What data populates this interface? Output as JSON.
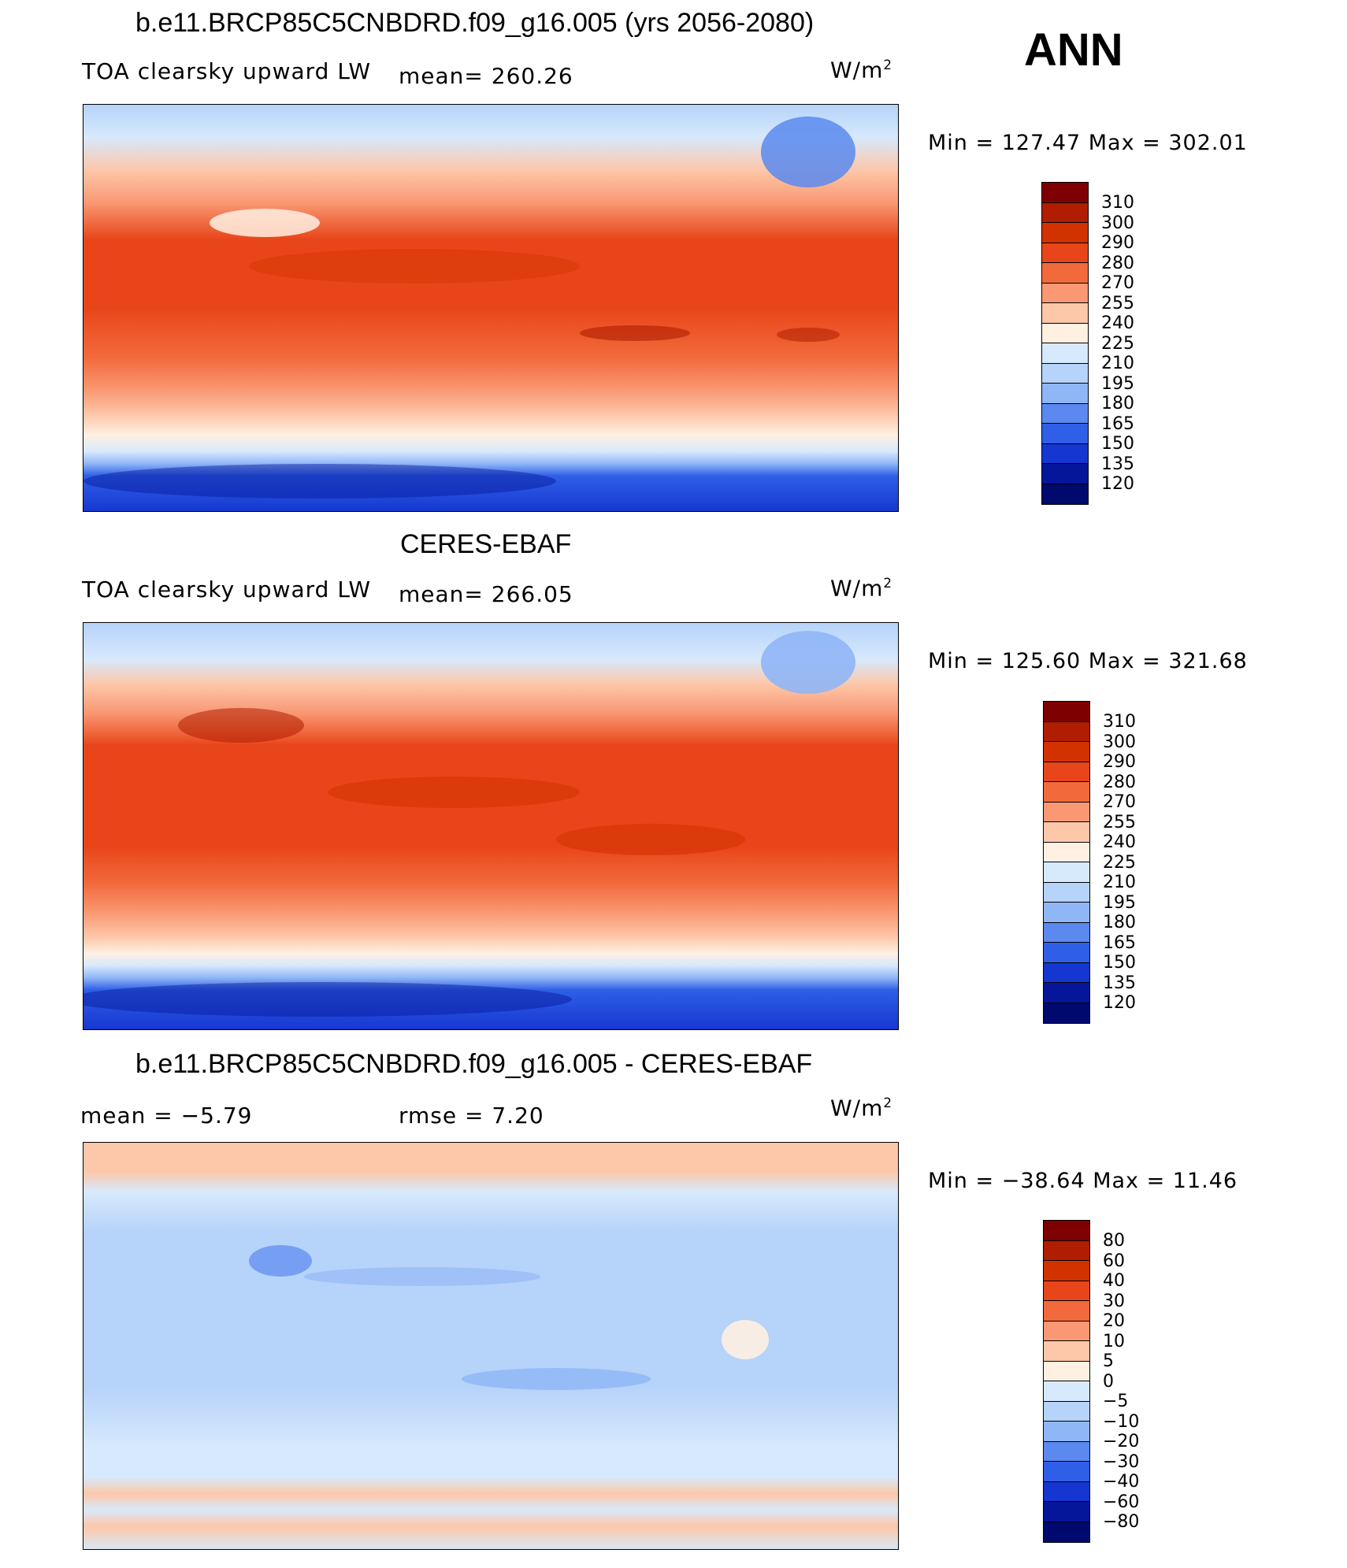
{
  "header": {
    "season": "ANN"
  },
  "panels": [
    {
      "title": "b.e11.BRCP85C5CNBDRD.f09_g16.005 (yrs 2056-2080)",
      "left_label": "TOA clearsky upward LW",
      "center_label": "mean=  260.26",
      "units": "W/m",
      "units_sup": "2",
      "minmax": "Min  =  127.47  Max  =  302.01",
      "map_name": "model-map",
      "colorbar_labels": [
        "310",
        "300",
        "290",
        "280",
        "270",
        "255",
        "240",
        "225",
        "210",
        "195",
        "180",
        "165",
        "150",
        "135",
        "120"
      ]
    },
    {
      "title": "CERES-EBAF",
      "left_label": "TOA clearsky upward LW",
      "center_label": "mean=  266.05",
      "units": "W/m",
      "units_sup": "2",
      "minmax": "Min  =  125.60  Max  =  321.68",
      "map_name": "obs-map",
      "colorbar_labels": [
        "310",
        "300",
        "290",
        "280",
        "270",
        "255",
        "240",
        "225",
        "210",
        "195",
        "180",
        "165",
        "150",
        "135",
        "120"
      ]
    },
    {
      "title": "b.e11.BRCP85C5CNBDRD.f09_g16.005 - CERES-EBAF",
      "left_label": "mean  =    −5.79",
      "center_label": "rmse  =     7.20",
      "units": "W/m",
      "units_sup": "2",
      "minmax": "Min  =  −38.64  Max  =    11.46",
      "map_name": "diff-map",
      "colorbar_labels": [
        "80",
        "60",
        "40",
        "30",
        "20",
        "10",
        "5",
        "0",
        "−5",
        "−10",
        "−20",
        "−30",
        "−40",
        "−60",
        "−80"
      ]
    }
  ],
  "colors": {
    "abs_scale": [
      "#7f0000",
      "#b01d00",
      "#d23200",
      "#e8461a",
      "#f26a3c",
      "#f99873",
      "#fdc7a9",
      "#fff0e2",
      "#d7e9fc",
      "#b6d3fa",
      "#8fb6f6",
      "#5b89ef",
      "#2f5fe6",
      "#1536d0",
      "#05169a",
      "#000a6e"
    ],
    "diff_scale": [
      "#7f0000",
      "#b01d00",
      "#d23200",
      "#e8461a",
      "#f26a3c",
      "#f99873",
      "#fdc7a9",
      "#fff0e2",
      "#d7e9fc",
      "#b6d3fa",
      "#8fb6f6",
      "#5b89ef",
      "#2f5fe6",
      "#1536d0",
      "#05169a",
      "#000a6e"
    ]
  },
  "chart_data": [
    {
      "type": "heatmap",
      "title": "b.e11.BRCP85C5CNBDRD.f09_g16.005 (yrs 2056-2080)",
      "variable": "TOA clearsky upward LW",
      "units": "W/m2",
      "mean": 260.26,
      "min": 127.47,
      "max": 302.01,
      "contour_levels": [
        120,
        135,
        150,
        165,
        180,
        195,
        210,
        225,
        240,
        255,
        270,
        280,
        290,
        300,
        310
      ],
      "zonal_pattern_description_omitted": true
    },
    {
      "type": "heatmap",
      "title": "CERES-EBAF",
      "variable": "TOA clearsky upward LW",
      "units": "W/m2",
      "mean": 266.05,
      "min": 125.6,
      "max": 321.68,
      "contour_levels": [
        120,
        135,
        150,
        165,
        180,
        195,
        210,
        225,
        240,
        255,
        270,
        280,
        290,
        300,
        310
      ]
    },
    {
      "type": "heatmap",
      "title": "b.e11.BRCP85C5CNBDRD.f09_g16.005 - CERES-EBAF",
      "units": "W/m2",
      "mean": -5.79,
      "rmse": 7.2,
      "min": -38.64,
      "max": 11.46,
      "contour_levels": [
        -80,
        -60,
        -40,
        -30,
        -20,
        -10,
        -5,
        0,
        5,
        10,
        20,
        30,
        40,
        60,
        80
      ]
    }
  ]
}
